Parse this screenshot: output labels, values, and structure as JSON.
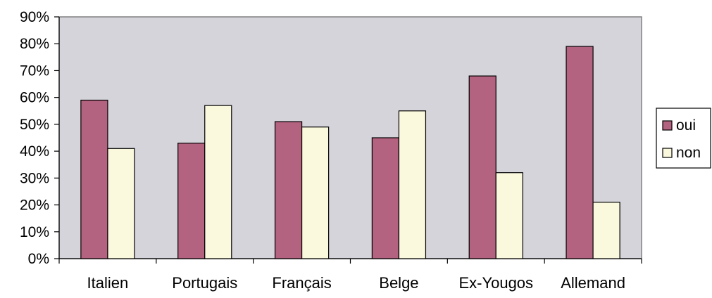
{
  "chart_data": {
    "type": "bar",
    "title": "",
    "xlabel": "",
    "ylabel": "",
    "categories": [
      "Italien",
      "Portugais",
      "Français",
      "Belge",
      "Ex-Yougos",
      "Allemand"
    ],
    "series": [
      {
        "name": "oui",
        "values": [
          0.59,
          0.43,
          0.51,
          0.45,
          0.68,
          0.79
        ],
        "color": "#B3637F"
      },
      {
        "name": "non",
        "values": [
          0.41,
          0.57,
          0.49,
          0.55,
          0.32,
          0.21
        ],
        "color": "#FAF8DD"
      }
    ],
    "ylim": [
      0,
      0.9
    ],
    "yticks": [
      0,
      0.1,
      0.2,
      0.3,
      0.4,
      0.5,
      0.6,
      0.7,
      0.8,
      0.9
    ],
    "ytick_labels": [
      "0%",
      "10%",
      "20%",
      "30%",
      "40%",
      "50%",
      "60%",
      "70%",
      "80%",
      "90%"
    ],
    "legend_position": "right",
    "grid": false,
    "plot_background": "#D5D4DB",
    "bar_edge_color": "#000000"
  }
}
